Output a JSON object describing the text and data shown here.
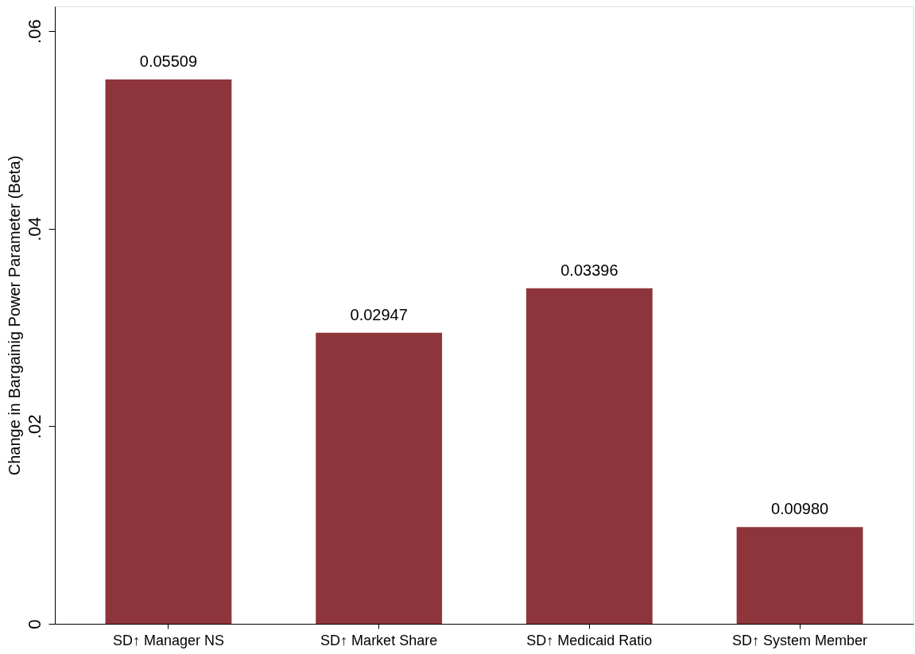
{
  "chart_data": {
    "type": "bar",
    "ylabel": "Change in Bargainig Power Parameter (Beta)",
    "categories": [
      "SD↑ Manager NS",
      "SD↑ Market Share",
      "SD↑ Medicaid Ratio",
      "SD↑ System Member"
    ],
    "values": [
      0.05509,
      0.02947,
      0.03396,
      0.0098
    ],
    "value_labels": [
      "0.05509",
      "0.02947",
      "0.03396",
      "0.00980"
    ],
    "color": "#8e353c",
    "ylim": [
      0,
      0.0625
    ],
    "yticks": [
      0,
      {
        "value": 0.02,
        "label": ".02"
      },
      {
        "value": 0.04,
        "label": ".04"
      },
      {
        "value": 0.06,
        "label": ".06"
      }
    ],
    "grid": false
  }
}
